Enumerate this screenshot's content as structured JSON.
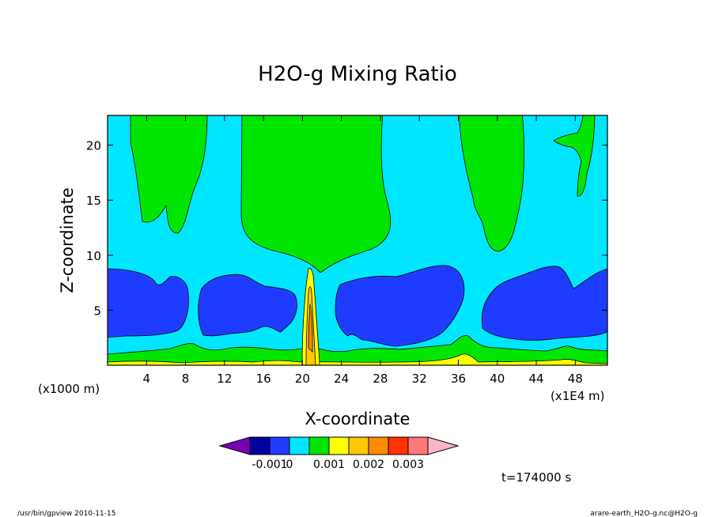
{
  "chart_data": {
    "type": "contour",
    "title": "H2O-g Mixing Ratio",
    "xlabel": "X-coordinate",
    "ylabel": "Z-coordinate",
    "x_unit_left": "(x1000 m)",
    "x_unit_right": "(x1E4 m)",
    "x_ticks": [
      4,
      8,
      12,
      16,
      20,
      24,
      28,
      32,
      36,
      40,
      44,
      48
    ],
    "y_ticks": [
      5,
      10,
      15,
      20
    ],
    "xlim": [
      0,
      51.3
    ],
    "ylim": [
      0,
      22.7
    ],
    "colorbar": {
      "tick_labels": [
        "-0.001",
        "0",
        "0.001",
        "0.002",
        "0.003"
      ],
      "colors": [
        "#7a00b4",
        "#0000a0",
        "#1e3cff",
        "#00e6ff",
        "#00e600",
        "#ffff00",
        "#ffc800",
        "#ff8c00",
        "#ff3200",
        "#ff7878",
        "#ffb4c8"
      ]
    },
    "fields": {
      "background": "#00e6ff",
      "upper_plumes": "#00e600",
      "mid_level_dry": "#1e3cff",
      "surface_layer": "#00e600",
      "near_surface": "#ffff00",
      "core": "#ffc800"
    },
    "annotation": "t=174000 s",
    "footer_left": "/usr/bin/gpview   2010-11-15",
    "footer_right": "arare-earth_H2O-g.nc@H2O-g"
  }
}
